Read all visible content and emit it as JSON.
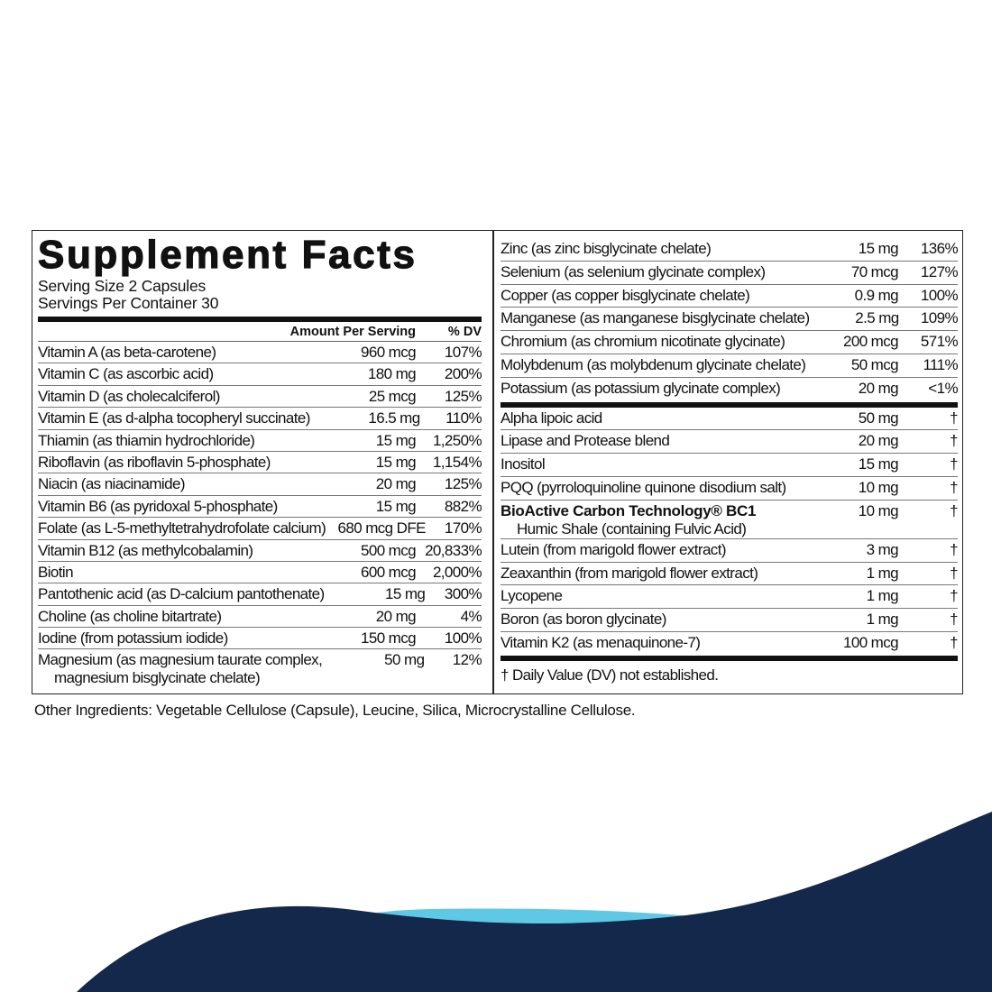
{
  "title": "Supplement Facts",
  "serving_size": "Serving Size 2 Capsules",
  "servings_per_container": "Servings Per Container 30",
  "header": {
    "amount": "Amount Per Serving",
    "dv": "% DV"
  },
  "left_rows": [
    {
      "name": "Vitamin A (as beta-carotene)",
      "amount": "960 mcg",
      "dv": "107%"
    },
    {
      "name": "Vitamin C (as ascorbic acid)",
      "amount": "180 mg",
      "dv": "200%"
    },
    {
      "name": "Vitamin D (as cholecalciferol)",
      "amount": "25 mcg",
      "dv": "125%"
    },
    {
      "name": "Vitamin E (as d-alpha tocopheryl  succinate)",
      "amount": "16.5 mg",
      "dv": "110%"
    },
    {
      "name": "Thiamin (as thiamin hydrochloride)",
      "amount": "15 mg",
      "dv": "1,250%"
    },
    {
      "name": "Riboflavin (as riboflavin 5-phosphate)",
      "amount": "15 mg",
      "dv": "1,154%"
    },
    {
      "name": "Niacin (as niacinamide)",
      "amount": "20 mg",
      "dv": "125%"
    },
    {
      "name": "Vitamin B6 (as pyridoxal 5-phosphate)",
      "amount": "15 mg",
      "dv": "882%"
    },
    {
      "name": "Folate (as L-5-methyltetrahydrofolate calcium)",
      "amount": "680 mcg DFE",
      "dv": "170%"
    },
    {
      "name": "Vitamin B12 (as methylcobalamin)",
      "amount": "500 mcg",
      "dv": "20,833%"
    },
    {
      "name": "Biotin",
      "amount": "600 mcg",
      "dv": "2,000%"
    },
    {
      "name": "Pantothenic acid (as D-calcium pantothenate)",
      "amount": "15 mg",
      "dv": "300%"
    },
    {
      "name": "Choline (as choline bitartrate)",
      "amount": "20 mg",
      "dv": "4%"
    },
    {
      "name": "Iodine (from potassium iodide)",
      "amount": "150 mcg",
      "dv": "100%"
    },
    {
      "name": "Magnesium (as magnesium taurate complex,",
      "name2": "magnesium bisglycinate chelate)",
      "amount": "50 mg",
      "dv": "12%"
    }
  ],
  "right_rows": [
    {
      "name": "Zinc (as zinc bisglycinate chelate)",
      "amount": "15 mg",
      "dv": "136%"
    },
    {
      "name": "Selenium (as selenium glycinate complex)",
      "amount": "70 mcg",
      "dv": "127%"
    },
    {
      "name": "Copper (as copper bisglycinate chelate)",
      "amount": "0.9 mg",
      "dv": "100%"
    },
    {
      "name": "Manganese (as manganese bisglycinate chelate)",
      "amount": "2.5 mg",
      "dv": "109%"
    },
    {
      "name": "Chromium (as chromium nicotinate glycinate)",
      "amount": "200 mcg",
      "dv": "571%"
    },
    {
      "name": "Molybdenum (as molybdenum glycinate chelate)",
      "amount": "50 mcg",
      "dv": "111%"
    },
    {
      "name": "Potassium (as potassium glycinate complex)",
      "amount": "20 mg",
      "dv": "<1%"
    }
  ],
  "other_rows": [
    {
      "name": "Alpha lipoic acid",
      "amount": "50 mg",
      "dv": "†"
    },
    {
      "name": "Lipase and Protease blend",
      "amount": "20 mg",
      "dv": "†"
    },
    {
      "name": "Inositol",
      "amount": "15 mg",
      "dv": "†"
    },
    {
      "name": "PQQ (pyrroloquinoline quinone disodium salt)",
      "amount": "10 mg",
      "dv": "†"
    },
    {
      "name": "BioActive Carbon Technology® BC1",
      "bold": true,
      "name2": "Humic Shale (containing Fulvic Acid)",
      "amount": "10 mg",
      "dv": "†"
    },
    {
      "name": "Lutein (from marigold flower extract)",
      "amount": "3 mg",
      "dv": "†"
    },
    {
      "name": "Zeaxanthin (from marigold flower extract)",
      "amount": "1 mg",
      "dv": "†"
    },
    {
      "name": "Lycopene",
      "amount": "1 mg",
      "dv": "†"
    },
    {
      "name": "Boron (as boron glycinate)",
      "amount": "1 mg",
      "dv": "†"
    },
    {
      "name": "Vitamin K2 (as menaquinone-7)",
      "amount": "100 mcg",
      "dv": "†"
    }
  ],
  "footnote": "† Daily Value (DV) not established.",
  "other_ingredients": "Other Ingredients: Vegetable Cellulose (Capsule), Leucine, Silica, Microcrystalline Cellulose.",
  "colors": {
    "navy": "#13284a",
    "light_blue": "#5ec8e5"
  }
}
